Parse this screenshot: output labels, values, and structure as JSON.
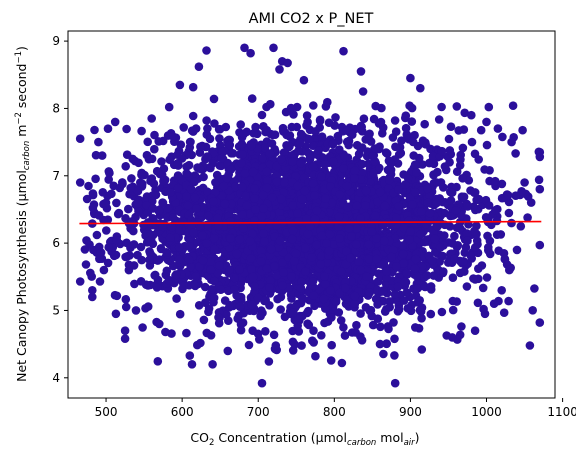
{
  "chart_data": {
    "type": "scatter",
    "title": "AMI CO2 x P_NET",
    "xlabel": {
      "parts": [
        {
          "text": "CO",
          "style": "normal"
        },
        {
          "text": "2",
          "style": "sub"
        },
        {
          "text": " Concentration (µmol",
          "style": "normal"
        },
        {
          "text": "carbon",
          "style": "sub-italic"
        },
        {
          "text": " mol",
          "style": "normal"
        },
        {
          "text": "air",
          "style": "sub-italic"
        },
        {
          "text": ")",
          "style": "normal"
        }
      ]
    },
    "ylabel": {
      "parts": [
        {
          "text": "Net Canopy Photosynthesis (µmol",
          "style": "normal"
        },
        {
          "text": "carbon",
          "style": "sub-italic"
        },
        {
          "text": " m",
          "style": "normal"
        },
        {
          "text": "−2",
          "style": "sup"
        },
        {
          "text": " second",
          "style": "normal"
        },
        {
          "text": "−1",
          "style": "sup"
        },
        {
          "text": ")",
          "style": "normal"
        }
      ]
    },
    "xlim": [
      450,
      1090
    ],
    "ylim": [
      3.7,
      9.15
    ],
    "xticks": [
      500,
      600,
      700,
      800,
      900,
      1000,
      1100
    ],
    "yticks": [
      4,
      5,
      6,
      7,
      8,
      9
    ],
    "grid": false,
    "point_color": "#2b0f9b",
    "fit_line": {
      "color": "#ff0000",
      "x": [
        465,
        1072
      ],
      "y": [
        6.29,
        6.32
      ]
    },
    "cloud": {
      "center_x": 760,
      "center_y": 6.3,
      "spread_x": 110,
      "spread_y": 0.65,
      "count": 4200,
      "seed": 17
    },
    "outliers": [
      [
        466,
        7.55
      ],
      [
        466,
        6.9
      ],
      [
        466,
        5.43
      ],
      [
        482,
        6.29
      ],
      [
        482,
        5.3
      ],
      [
        482,
        5.2
      ],
      [
        490,
        7.5
      ],
      [
        495,
        7.3
      ],
      [
        488,
        6.12
      ],
      [
        500,
        6.6
      ],
      [
        512,
        7.8
      ],
      [
        513,
        4.95
      ],
      [
        525,
        4.7
      ],
      [
        525,
        4.58
      ],
      [
        530,
        5.6
      ],
      [
        535,
        7.25
      ],
      [
        545,
        6.9
      ],
      [
        560,
        7.85
      ],
      [
        570,
        4.8
      ],
      [
        578,
        4.68
      ],
      [
        583,
        8.02
      ],
      [
        597,
        8.35
      ],
      [
        610,
        4.33
      ],
      [
        613,
        4.2
      ],
      [
        622,
        8.62
      ],
      [
        632,
        8.86
      ],
      [
        640,
        4.2
      ],
      [
        660,
        4.4
      ],
      [
        682,
        8.9
      ],
      [
        690,
        8.82
      ],
      [
        705,
        3.92
      ],
      [
        720,
        8.9
      ],
      [
        728,
        8.58
      ],
      [
        760,
        8.42
      ],
      [
        810,
        4.22
      ],
      [
        812,
        8.85
      ],
      [
        835,
        8.55
      ],
      [
        860,
        4.5
      ],
      [
        880,
        3.92
      ],
      [
        900,
        8.45
      ],
      [
        913,
        8.3
      ],
      [
        915,
        4.42
      ],
      [
        955,
        4.6
      ],
      [
        985,
        4.7
      ],
      [
        998,
        4.95
      ],
      [
        1003,
        8.02
      ],
      [
        1015,
        7.7
      ],
      [
        1033,
        7.5
      ],
      [
        1045,
        6.25
      ],
      [
        1057,
        4.48
      ],
      [
        1070,
        7.35
      ],
      [
        1070,
        7.28
      ],
      [
        1070,
        6.8
      ],
      [
        1070,
        5.97
      ],
      [
        1070,
        4.82
      ],
      [
        1010,
        5.1
      ],
      [
        1020,
        5.3
      ],
      [
        1040,
        5.9
      ],
      [
        1050,
        6.9
      ],
      [
        1000,
        7.8
      ],
      [
        980,
        7.9
      ],
      [
        1030,
        5.6
      ]
    ]
  }
}
